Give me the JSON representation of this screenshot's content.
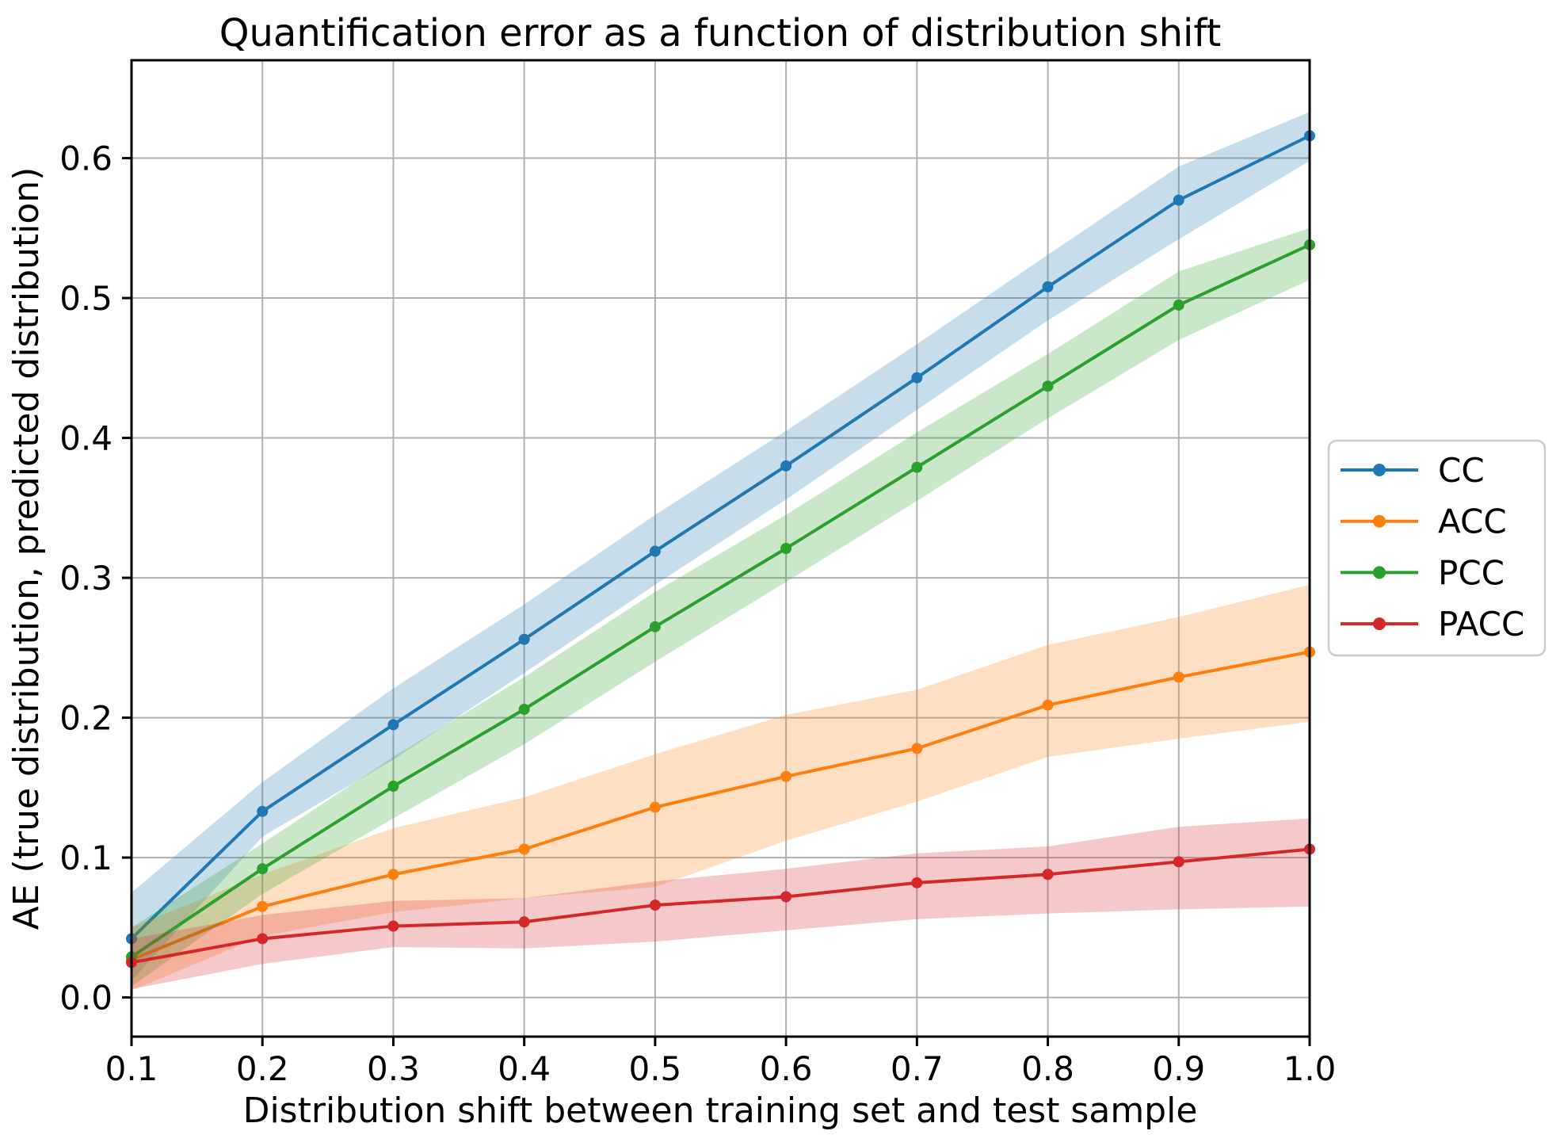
{
  "chart_data": {
    "type": "line",
    "title": "Quantification error as a function of distribution shift",
    "xlabel": "Distribution shift between training set and test sample",
    "ylabel": "AE (true distribution, predicted distribution)",
    "x": [
      0.1,
      0.2,
      0.3,
      0.4,
      0.5,
      0.6,
      0.7,
      0.8,
      0.9,
      1.0
    ],
    "xlim": [
      0.1,
      1.0
    ],
    "ylim": [
      -0.028,
      0.67
    ],
    "x_tick_labels": [
      "0.1",
      "0.2",
      "0.3",
      "0.4",
      "0.5",
      "0.6",
      "0.7",
      "0.8",
      "0.9",
      "1.0"
    ],
    "y_tick_values": [
      0.0,
      0.1,
      0.2,
      0.3,
      0.4,
      0.5,
      0.6
    ],
    "y_tick_labels": [
      "0.0",
      "0.1",
      "0.2",
      "0.3",
      "0.4",
      "0.5",
      "0.6"
    ],
    "grid": true,
    "grid_color": "#b0b0b0",
    "spine_color": "#000000",
    "background": "#ffffff",
    "band_opacity": 0.25,
    "legend_position": "right-outside",
    "series": [
      {
        "name": "CC",
        "color": "#1f77b4",
        "values": [
          0.042,
          0.133,
          0.195,
          0.256,
          0.319,
          0.38,
          0.443,
          0.508,
          0.57,
          0.616
        ],
        "band_low": [
          0.012,
          0.115,
          0.17,
          0.232,
          0.295,
          0.356,
          0.42,
          0.484,
          0.542,
          0.598
        ],
        "band_high": [
          0.075,
          0.154,
          0.221,
          0.281,
          0.345,
          0.405,
          0.467,
          0.531,
          0.594,
          0.633
        ]
      },
      {
        "name": "ACC",
        "color": "#ff7f0e",
        "values": [
          0.027,
          0.065,
          0.088,
          0.106,
          0.136,
          0.158,
          0.178,
          0.209,
          0.229,
          0.247
        ],
        "band_low": [
          0.005,
          0.044,
          0.061,
          0.071,
          0.079,
          0.112,
          0.14,
          0.172,
          0.185,
          0.197
        ],
        "band_high": [
          0.05,
          0.088,
          0.121,
          0.143,
          0.174,
          0.202,
          0.22,
          0.252,
          0.272,
          0.295
        ]
      },
      {
        "name": "PCC",
        "color": "#2ca02c",
        "values": [
          0.029,
          0.092,
          0.151,
          0.206,
          0.265,
          0.321,
          0.379,
          0.437,
          0.495,
          0.538
        ],
        "band_low": [
          0.008,
          0.074,
          0.128,
          0.181,
          0.24,
          0.297,
          0.355,
          0.414,
          0.47,
          0.513
        ],
        "band_high": [
          0.05,
          0.11,
          0.172,
          0.229,
          0.29,
          0.345,
          0.404,
          0.46,
          0.519,
          0.55
        ]
      },
      {
        "name": "PACC",
        "color": "#d62728",
        "values": [
          0.025,
          0.042,
          0.051,
          0.054,
          0.066,
          0.072,
          0.082,
          0.088,
          0.097,
          0.106
        ],
        "band_low": [
          0.006,
          0.024,
          0.036,
          0.035,
          0.04,
          0.048,
          0.056,
          0.06,
          0.063,
          0.065
        ],
        "band_high": [
          0.042,
          0.059,
          0.069,
          0.071,
          0.083,
          0.092,
          0.103,
          0.108,
          0.122,
          0.128
        ]
      }
    ]
  }
}
